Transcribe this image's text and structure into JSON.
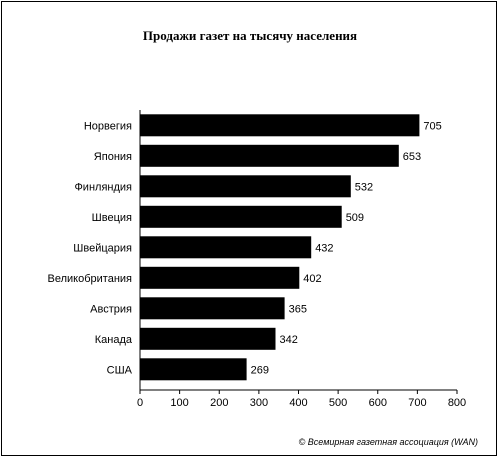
{
  "chart_data": {
    "type": "bar",
    "orientation": "horizontal",
    "title": "Продажи газет на тысячу населения",
    "categories": [
      "Норвегия",
      "Япония",
      "Финляндия",
      "Швеция",
      "Швейцария",
      "Великобритания",
      "Австрия",
      "Канада",
      "США"
    ],
    "values": [
      705,
      653,
      532,
      509,
      432,
      402,
      365,
      342,
      269
    ],
    "xlim": [
      0,
      800
    ],
    "xticks": [
      0,
      100,
      200,
      300,
      400,
      500,
      600,
      700,
      800
    ],
    "xlabel": "",
    "ylabel": "",
    "grid": false,
    "legend": "none",
    "bar_color": "#000000"
  },
  "credit": "© Всемирная газетная ассоциация (WAN)"
}
